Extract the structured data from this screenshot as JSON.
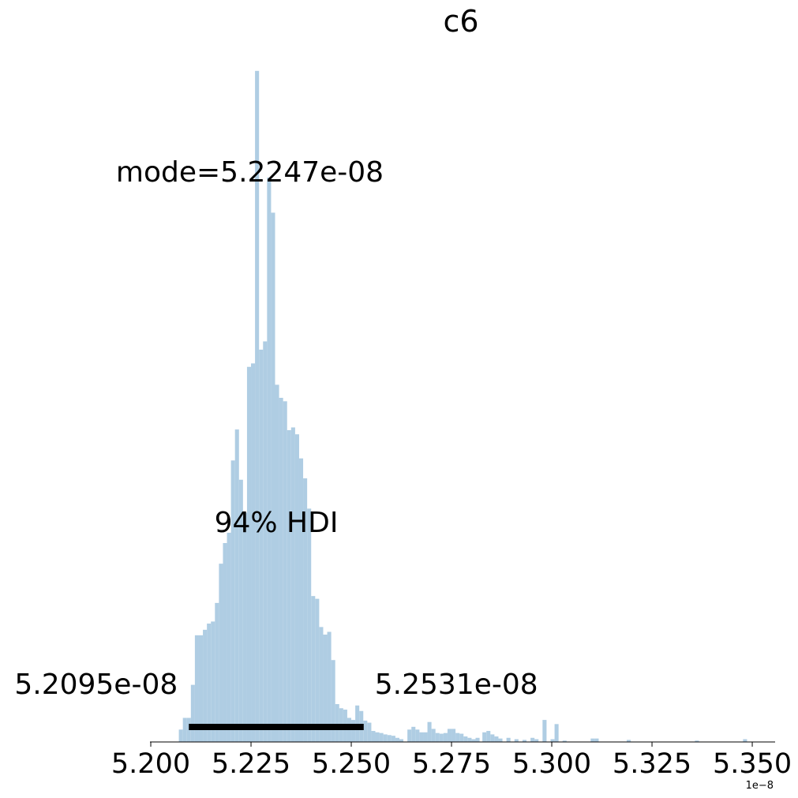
{
  "chart_data": {
    "type": "bar",
    "title": "c6",
    "xlabel": "",
    "ylabel": "",
    "x_scale_label": "1e−8",
    "xlim": [
      5.1998,
      5.3557
    ],
    "ylim": [
      0,
      1.0
    ],
    "ticks": {
      "values": [
        5.2,
        5.225,
        5.25,
        5.275,
        5.3,
        5.325,
        5.35
      ],
      "labels": [
        "5.200",
        "5.225",
        "5.250",
        "5.275",
        "5.300",
        "5.325",
        "5.350"
      ]
    },
    "bin_width": 0.001,
    "bin_start": 5.207,
    "heights": [
      0.018,
      0.035,
      0.035,
      0.083,
      0.155,
      0.155,
      0.163,
      0.172,
      0.175,
      0.202,
      0.259,
      0.289,
      0.304,
      0.409,
      0.454,
      0.381,
      0.333,
      0.545,
      0.55,
      0.975,
      0.57,
      0.582,
      0.82,
      0.769,
      0.519,
      0.5,
      0.495,
      0.453,
      0.457,
      0.447,
      0.412,
      0.383,
      0.339,
      0.212,
      0.208,
      0.167,
      0.156,
      0.16,
      0.119,
      0.055,
      0.049,
      0.047,
      0.035,
      0.032,
      0.053,
      0.045,
      0.031,
      0.028,
      0.016,
      0.014,
      0.013,
      0.011,
      0.01,
      0.009,
      0.006,
      0.004,
      0.0,
      0.018,
      0.022,
      0.018,
      0.014,
      0.014,
      0.029,
      0.019,
      0.013,
      0.012,
      0.013,
      0.019,
      0.019,
      0.013,
      0.012,
      0.008,
      0.006,
      0.004,
      0.006
    ],
    "sparse_bins": [
      {
        "x": 5.2827,
        "h": 0.014
      },
      {
        "x": 5.2837,
        "h": 0.016
      },
      {
        "x": 5.2847,
        "h": 0.011
      },
      {
        "x": 5.2857,
        "h": 0.008
      },
      {
        "x": 5.2867,
        "h": 0.005
      },
      {
        "x": 5.2887,
        "h": 0.006
      },
      {
        "x": 5.2907,
        "h": 0.004
      },
      {
        "x": 5.2927,
        "h": 0.003
      },
      {
        "x": 5.2947,
        "h": 0.006
      },
      {
        "x": 5.2957,
        "h": 0.004
      },
      {
        "x": 5.2977,
        "h": 0.032
      },
      {
        "x": 5.2997,
        "h": 0.004
      },
      {
        "x": 5.3007,
        "h": 0.026
      },
      {
        "x": 5.3027,
        "h": 0.002
      },
      {
        "x": 5.3097,
        "h": 0.005
      },
      {
        "x": 5.3107,
        "h": 0.005
      },
      {
        "x": 5.3187,
        "h": 0.003
      },
      {
        "x": 5.3357,
        "h": 0.002
      },
      {
        "x": 5.3477,
        "h": 0.004
      }
    ],
    "hdi": {
      "low": 5.2095,
      "high": 5.2531,
      "label": "94% HDI",
      "low_label": "5.2095e-08",
      "high_label": "5.2531e-08"
    },
    "mode": {
      "value": 5.2247,
      "label": "mode=5.2247e-08"
    },
    "colors": {
      "bars": "#afcde3",
      "hdi_bar": "#000000",
      "axis": "#000000"
    }
  }
}
